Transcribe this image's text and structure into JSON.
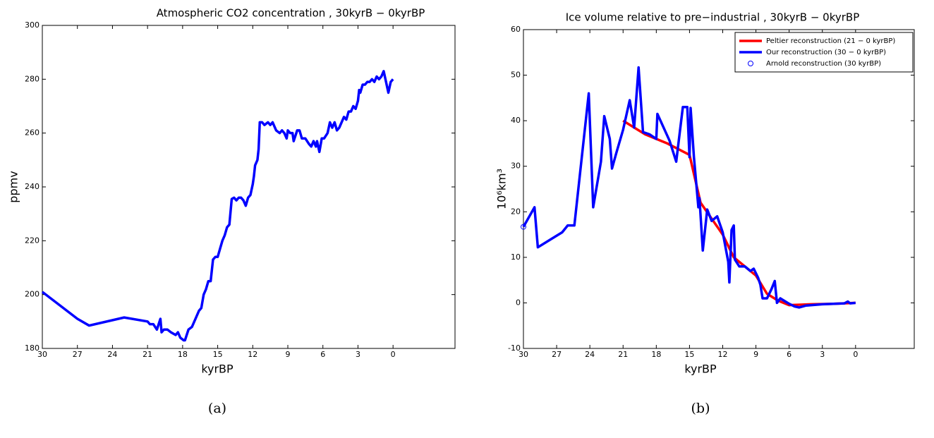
{
  "chart_data": [
    {
      "type": "line",
      "title": "Atmospheric CO2 concentration , 30kyrB − 0kyrBP",
      "x_label": "kyrBP",
      "y_label": "ppmv",
      "caption": "(a)",
      "xlim": [
        30,
        -5.3
      ],
      "xticks": [
        30,
        27,
        24,
        21,
        18,
        15,
        12,
        9,
        6,
        3,
        0
      ],
      "ylim": [
        180,
        300
      ],
      "yticks": [
        180,
        200,
        220,
        240,
        260,
        280,
        300
      ],
      "series": [
        {
          "name": "CO2",
          "color": "#0000ff",
          "style": "line",
          "x": [
            30,
            27,
            26,
            23,
            21,
            20.8,
            20.5,
            20.2,
            19.9,
            19.8,
            19.6,
            19.3,
            19,
            18.6,
            18.4,
            18.2,
            17.9,
            17.8,
            17.5,
            17.2,
            16.9,
            16.6,
            16.4,
            16.2,
            16,
            15.8,
            15.6,
            15.4,
            15.2,
            15,
            14.8,
            14.6,
            14.4,
            14.2,
            14,
            13.8,
            13.6,
            13.4,
            13.2,
            13,
            12.8,
            12.6,
            12.4,
            12.2,
            12,
            11.9,
            11.8,
            11.6,
            11.5,
            11.4,
            11.2,
            11,
            10.7,
            10.5,
            10.3,
            10,
            9.7,
            9.5,
            9.3,
            9.1,
            9,
            8.8,
            8.6,
            8.5,
            8.2,
            8,
            7.8,
            7.5,
            7.2,
            7,
            6.8,
            6.6,
            6.5,
            6.3,
            6.1,
            5.9,
            5.6,
            5.4,
            5.2,
            5,
            4.8,
            4.6,
            4.4,
            4.2,
            4,
            3.8,
            3.6,
            3.4,
            3.2,
            3,
            2.9,
            2.8,
            2.6,
            2.4,
            2.2,
            2,
            1.8,
            1.6,
            1.4,
            1.2,
            1,
            0.8,
            0.6,
            0.4,
            0.2,
            0
          ],
          "values": [
            201,
            191,
            188.5,
            191.5,
            190,
            189,
            189,
            187,
            191,
            186,
            187,
            187,
            186,
            185,
            186,
            184,
            183,
            183,
            187,
            188,
            191,
            194,
            195,
            200,
            202,
            205,
            205,
            213,
            214,
            214,
            217,
            220,
            222,
            225,
            226,
            235.5,
            236,
            235,
            236,
            236,
            235,
            233,
            236,
            237,
            241,
            244,
            248,
            250,
            254,
            264,
            264,
            263,
            264,
            263,
            264,
            261,
            260,
            261,
            260,
            258,
            261,
            260,
            260,
            257,
            261,
            261,
            258,
            258,
            256,
            255,
            257,
            255,
            257,
            253,
            258,
            258,
            260,
            264,
            262,
            264,
            261,
            262,
            264,
            266,
            265,
            268,
            268,
            270,
            269,
            272,
            276,
            275,
            278,
            278,
            279,
            279,
            280,
            279,
            281,
            280,
            281,
            283,
            279,
            275,
            279,
            280
          ]
        }
      ]
    },
    {
      "type": "line",
      "title": "Ice volume relative to pre−industrial , 30kyrB − 0kyrBP",
      "x_label": "kyrBP",
      "y_label": "10⁶km³",
      "caption": "(b)",
      "xlim": [
        30,
        -5.3
      ],
      "xticks": [
        30,
        27,
        24,
        21,
        18,
        15,
        12,
        9,
        6,
        3,
        0
      ],
      "ylim": [
        -10,
        60
      ],
      "yticks": [
        -10,
        0,
        10,
        20,
        30,
        40,
        50,
        60
      ],
      "legend": "top-right",
      "series": [
        {
          "name": "Peltier reconstruction (21 − 0 kyrBP)",
          "color": "#ff0000",
          "style": "line",
          "x": [
            21,
            19,
            17,
            15,
            14,
            12,
            11,
            9,
            8,
            7,
            6,
            4,
            2,
            0
          ],
          "values": [
            40,
            37,
            35,
            32.5,
            22,
            15,
            10,
            6,
            2,
            0.5,
            -0.5,
            -0.3,
            -0.2,
            0
          ]
        },
        {
          "name": "Our reconstruction (30 − 0 kyrBP)",
          "color": "#0000ff",
          "style": "line",
          "x": [
            30,
            29,
            28.7,
            27.5,
            26.5,
            26,
            25.4,
            24.1,
            23.7,
            23,
            22.7,
            22.2,
            22,
            21.6,
            21,
            20.4,
            20,
            19.6,
            19.2,
            18.6,
            18,
            17.9,
            16.8,
            16.2,
            15.6,
            15.2,
            15,
            14.9,
            14.6,
            14.2,
            14.1,
            13.8,
            13.4,
            13,
            12.5,
            12,
            11.5,
            11.4,
            11.2,
            11,
            10.9,
            10.5,
            10,
            9.5,
            9.2,
            8.8,
            8.6,
            8.4,
            8,
            7.6,
            7.3,
            7.1,
            6.8,
            6,
            5.5,
            5.1,
            4.5,
            3,
            1,
            0.7,
            0.5,
            0
          ],
          "values": [
            16.7,
            21,
            12.2,
            14,
            15.5,
            17,
            17,
            46,
            21,
            31,
            41,
            36,
            29.5,
            33,
            38,
            44.5,
            38.5,
            51.7,
            37.5,
            37,
            36,
            41.5,
            35.6,
            31,
            43,
            43,
            32,
            42.8,
            32,
            21,
            23,
            11.5,
            20.5,
            18,
            19,
            15.5,
            9,
            4.5,
            16,
            17,
            9.5,
            8,
            8,
            7,
            7.5,
            5.5,
            4,
            1,
            1,
            3,
            4.8,
            0,
            1,
            -0.2,
            -0.8,
            -1,
            -0.6,
            -0.3,
            -0.1,
            0.3,
            -0.1,
            0
          ]
        },
        {
          "name": "Arnold reconstruction (30 kyrBP)",
          "color": "#0000ff",
          "style": "circle",
          "x": [
            30
          ],
          "values": [
            16.7
          ]
        }
      ]
    }
  ]
}
